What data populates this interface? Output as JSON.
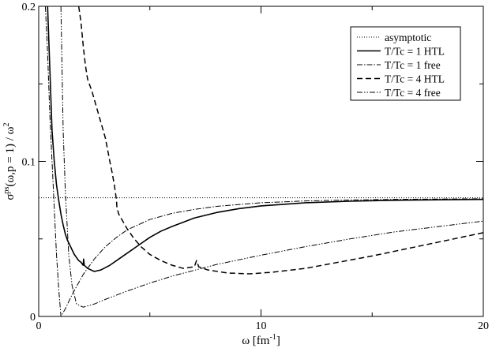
{
  "chart_data": {
    "type": "line",
    "title": "",
    "xlabel": {
      "base": "ω [fm",
      "sup": "-1",
      "tail": "]"
    },
    "ylabel": {
      "pre": "σ",
      "sup": "ps",
      "mid": "(ω,p = 1) / ω",
      "sup2": "2"
    },
    "xlim": [
      0,
      20
    ],
    "ylim": [
      0,
      0.2
    ],
    "xticks": [
      0,
      10,
      20
    ],
    "yticks": [
      0,
      0.1,
      0.2
    ],
    "xtick_labels": [
      "0",
      "10",
      "20"
    ],
    "ytick_labels": [
      "0",
      "0.1",
      "0.2"
    ],
    "grid": false,
    "legend_position": "top-right",
    "series": [
      {
        "name": "asymptotic",
        "dash": "1,2",
        "stroke_width": 1,
        "points": [
          [
            0,
            0.0765
          ],
          [
            20,
            0.0765
          ]
        ]
      },
      {
        "name": "T/Tc = 1 HTL",
        "dash": "",
        "stroke_width": 1.6,
        "points": [
          [
            0.4,
            0.2
          ],
          [
            0.45,
            0.18
          ],
          [
            0.5,
            0.16
          ],
          [
            0.55,
            0.14
          ],
          [
            0.6,
            0.12
          ],
          [
            0.7,
            0.1
          ],
          [
            0.8,
            0.085
          ],
          [
            0.9,
            0.075
          ],
          [
            1.0,
            0.066
          ],
          [
            1.1,
            0.059
          ],
          [
            1.2,
            0.053
          ],
          [
            1.3,
            0.049
          ],
          [
            1.4,
            0.046
          ],
          [
            1.5,
            0.043
          ],
          [
            1.6,
            0.04
          ],
          [
            1.7,
            0.038
          ],
          [
            1.8,
            0.036
          ],
          [
            1.9,
            0.035
          ],
          [
            2.0,
            0.033
          ],
          [
            2.02,
            0.037
          ],
          [
            2.05,
            0.033
          ],
          [
            2.2,
            0.031
          ],
          [
            2.5,
            0.029
          ],
          [
            2.8,
            0.03
          ],
          [
            3.2,
            0.033
          ],
          [
            3.6,
            0.037
          ],
          [
            4.0,
            0.041
          ],
          [
            4.5,
            0.046
          ],
          [
            5.0,
            0.051
          ],
          [
            5.5,
            0.055
          ],
          [
            6.0,
            0.058
          ],
          [
            7.0,
            0.0635
          ],
          [
            8.0,
            0.067
          ],
          [
            9.0,
            0.0695
          ],
          [
            10.0,
            0.0713
          ],
          [
            12.0,
            0.0733
          ],
          [
            14.0,
            0.0743
          ],
          [
            16.0,
            0.0749
          ],
          [
            18.0,
            0.0752
          ],
          [
            20.0,
            0.0755
          ]
        ]
      },
      {
        "name": "T/Tc = 1 free",
        "dash": "7,2,1.5,2",
        "stroke_width": 1,
        "points": [
          [
            0.3,
            0.2
          ],
          [
            0.4,
            0.17
          ],
          [
            0.5,
            0.13
          ],
          [
            0.6,
            0.1
          ],
          [
            0.7,
            0.07
          ],
          [
            0.8,
            0.04
          ],
          [
            0.9,
            0.018
          ],
          [
            1.0,
            0.0
          ],
          [
            1.2,
            0.005
          ],
          [
            1.5,
            0.014
          ],
          [
            2.0,
            0.027
          ],
          [
            2.5,
            0.037
          ],
          [
            3.0,
            0.045
          ],
          [
            3.5,
            0.051
          ],
          [
            4.0,
            0.056
          ],
          [
            5.0,
            0.0625
          ],
          [
            6.0,
            0.0665
          ],
          [
            7.0,
            0.069
          ],
          [
            8.0,
            0.071
          ],
          [
            10.0,
            0.0733
          ],
          [
            12.0,
            0.0745
          ],
          [
            14.0,
            0.0751
          ],
          [
            16.0,
            0.0755
          ],
          [
            18.0,
            0.0757
          ],
          [
            20.0,
            0.0759
          ]
        ]
      },
      {
        "name": "T/Tc = 4 HTL",
        "dash": "7,4",
        "stroke_width": 1.5,
        "points": [
          [
            1.8,
            0.2
          ],
          [
            1.9,
            0.19
          ],
          [
            2.0,
            0.175
          ],
          [
            2.1,
            0.162
          ],
          [
            2.2,
            0.153
          ],
          [
            2.4,
            0.145
          ],
          [
            2.6,
            0.135
          ],
          [
            2.8,
            0.125
          ],
          [
            3.0,
            0.115
          ],
          [
            3.2,
            0.1
          ],
          [
            3.3,
            0.093
          ],
          [
            3.4,
            0.085
          ],
          [
            3.5,
            0.075
          ],
          [
            3.52,
            0.07
          ],
          [
            3.6,
            0.066
          ],
          [
            3.8,
            0.061
          ],
          [
            4.0,
            0.056
          ],
          [
            4.3,
            0.05
          ],
          [
            4.6,
            0.045
          ],
          [
            5.0,
            0.04
          ],
          [
            5.5,
            0.036
          ],
          [
            6.0,
            0.033
          ],
          [
            6.5,
            0.031
          ],
          [
            7.0,
            0.032
          ],
          [
            7.1,
            0.036
          ],
          [
            7.2,
            0.032
          ],
          [
            7.6,
            0.03
          ],
          [
            8.5,
            0.028
          ],
          [
            9.5,
            0.0275
          ],
          [
            10.5,
            0.0285
          ],
          [
            12.0,
            0.031
          ],
          [
            13.5,
            0.035
          ],
          [
            15.0,
            0.039
          ],
          [
            16.5,
            0.0435
          ],
          [
            18.0,
            0.048
          ],
          [
            19.0,
            0.051
          ],
          [
            20.0,
            0.054
          ]
        ]
      },
      {
        "name": "T/Tc = 4 free",
        "dash": "7,2,1.5,2,1.5,2",
        "stroke_width": 1,
        "points": [
          [
            1.0,
            0.2
          ],
          [
            1.05,
            0.16
          ],
          [
            1.1,
            0.12
          ],
          [
            1.2,
            0.08
          ],
          [
            1.35,
            0.04
          ],
          [
            1.5,
            0.02
          ],
          [
            1.7,
            0.008
          ],
          [
            2.0,
            0.006
          ],
          [
            2.5,
            0.008
          ],
          [
            3.0,
            0.011
          ],
          [
            4.0,
            0.0165
          ],
          [
            5.0,
            0.0215
          ],
          [
            6.0,
            0.026
          ],
          [
            8.0,
            0.0335
          ],
          [
            10.0,
            0.0395
          ],
          [
            12.0,
            0.045
          ],
          [
            14.0,
            0.05
          ],
          [
            16.0,
            0.0545
          ],
          [
            18.0,
            0.058
          ],
          [
            20.0,
            0.0615
          ]
        ]
      }
    ]
  }
}
